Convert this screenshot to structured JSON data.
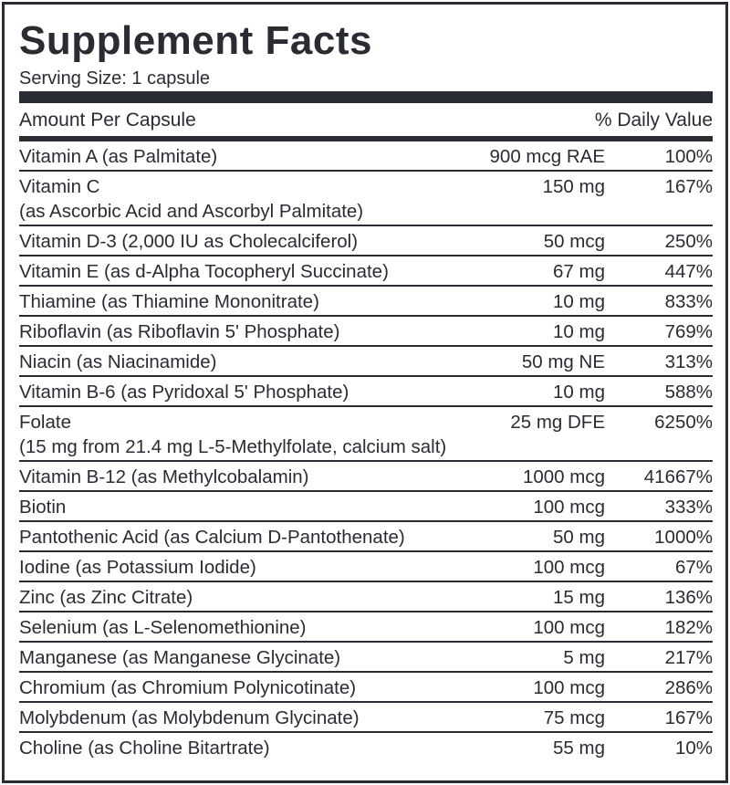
{
  "title": "Supplement Facts",
  "serving_size": "Serving Size: 1 capsule",
  "header": {
    "amount_label": "Amount Per Capsule",
    "dv_label": "% Daily Value"
  },
  "rows": [
    {
      "name": "Vitamin A (as Palmitate)",
      "amount": "900 mcg RAE",
      "dv": "100%"
    },
    {
      "name": "Vitamin C",
      "sub": "(as Ascorbic Acid and Ascorbyl Palmitate)",
      "amount": "150 mg",
      "dv": "167%"
    },
    {
      "name": "Vitamin D-3 (2,000 IU as Cholecalciferol)",
      "amount": "50 mcg",
      "dv": "250%"
    },
    {
      "name": "Vitamin E (as d-Alpha Tocopheryl Succinate)",
      "amount": "67 mg",
      "dv": "447%"
    },
    {
      "name": "Thiamine (as Thiamine Mononitrate)",
      "amount": "10 mg",
      "dv": "833%"
    },
    {
      "name": "Riboflavin (as Riboflavin 5' Phosphate)",
      "amount": "10 mg",
      "dv": "769%"
    },
    {
      "name": "Niacin (as Niacinamide)",
      "amount": "50 mg NE",
      "dv": "313%"
    },
    {
      "name": "Vitamin B-6 (as Pyridoxal 5' Phosphate)",
      "amount": "10 mg",
      "dv": "588%"
    },
    {
      "name": "Folate",
      "sub": "(15 mg from 21.4 mg L-5-Methylfolate, calcium salt)",
      "amount": "25 mg DFE",
      "dv": "6250%"
    },
    {
      "name": "Vitamin B-12 (as Methylcobalamin)",
      "amount": "1000 mcg",
      "dv": "41667%"
    },
    {
      "name": "Biotin",
      "amount": "100 mcg",
      "dv": "333%"
    },
    {
      "name": "Pantothenic Acid (as Calcium D-Pantothenate)",
      "amount": "50 mg",
      "dv": "1000%"
    },
    {
      "name": "Iodine (as Potassium Iodide)",
      "amount": "100 mcg",
      "dv": "67%"
    },
    {
      "name": "Zinc (as Zinc Citrate)",
      "amount": "15 mg",
      "dv": "136%"
    },
    {
      "name": "Selenium (as L-Selenomethionine)",
      "amount": "100 mcg",
      "dv": "182%"
    },
    {
      "name": "Manganese (as Manganese Glycinate)",
      "amount": "5 mg",
      "dv": "217%"
    },
    {
      "name": "Chromium (as Chromium Polynicotinate)",
      "amount": "100 mcg",
      "dv": "286%"
    },
    {
      "name": "Molybdenum (as Molybdenum Glycinate)",
      "amount": "75 mcg",
      "dv": "167%"
    },
    {
      "name": "Choline (as Choline Bitartrate)",
      "amount": "55 mg",
      "dv": "10%"
    }
  ]
}
